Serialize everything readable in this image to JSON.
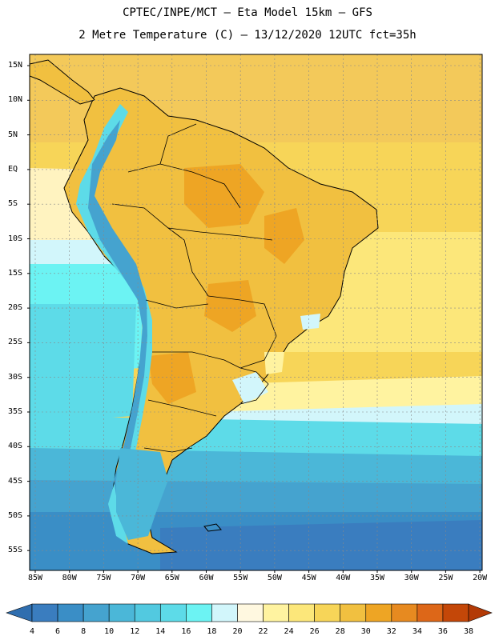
{
  "header": {
    "line1": "CPTEC/INPE/MCT –  Eta Model 15km – GFS",
    "line2": "2 Metre Temperature (C) – 13/12/2020 12UTC fct=35h"
  },
  "map": {
    "lat_labels": [
      "15N",
      "10N",
      "5N",
      "EQ",
      "5S",
      "10S",
      "15S",
      "20S",
      "25S",
      "30S",
      "35S",
      "40S",
      "45S",
      "50S",
      "55S"
    ],
    "lon_labels": [
      "85W",
      "80W",
      "75W",
      "70W",
      "65W",
      "60W",
      "55W",
      "50W",
      "45W",
      "40W",
      "35W",
      "30W",
      "25W",
      "20W"
    ]
  },
  "colorbar": {
    "labels": [
      "4",
      "6",
      "8",
      "10",
      "12",
      "14",
      "16",
      "18",
      "20",
      "22",
      "24",
      "26",
      "28",
      "30",
      "32",
      "34",
      "36",
      "38"
    ],
    "colors": [
      "#3a7dbf",
      "#3a8ec6",
      "#45a3cf",
      "#4bb7d8",
      "#52c9e0",
      "#5ddbe8",
      "#6cf3f3",
      "#d2f6fb",
      "#fff8e0",
      "#fff3a0",
      "#fce77a",
      "#f7d558",
      "#f1c040",
      "#eea524",
      "#e78a20",
      "#dd6718",
      "#c44708"
    ]
  }
}
